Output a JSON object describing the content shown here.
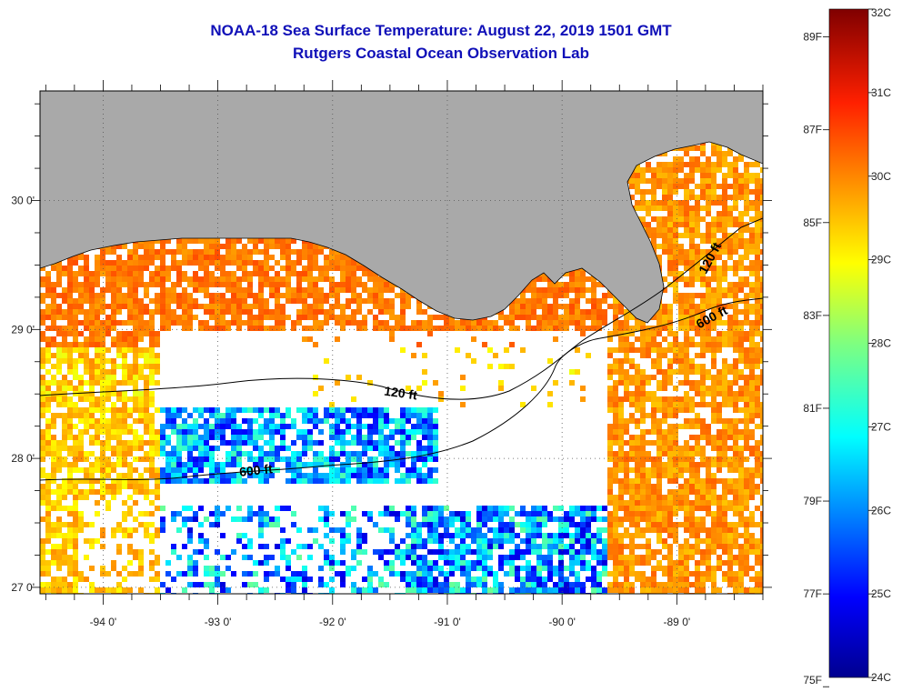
{
  "title": "NOAA-18 Sea Surface Temperature:  August 22, 2019 1501 GMT",
  "subtitle": "Rutgers Coastal Ocean Observation Lab",
  "colors": {
    "land": "#a9a9a9",
    "title": "#1010b8",
    "missing": "#ffffff"
  },
  "map": {
    "lon_range": [
      -94.55,
      -88.25
    ],
    "lat_range": [
      26.95,
      30.85
    ],
    "lon_ticks": [
      "-94 0'",
      "-93 0'",
      "-92 0'",
      "-91 0'",
      "-90 0'",
      "-89 0'"
    ],
    "lat_ticks": [
      "30 0'",
      "29 0'",
      "28 0'",
      "27 0'"
    ],
    "contours": [
      {
        "label": "120 ft"
      },
      {
        "label": "600 ft"
      },
      {
        "label": "120 ft"
      },
      {
        "label": "600 ft"
      }
    ]
  },
  "colorbar": {
    "celsius_labels": [
      "32C",
      "31C",
      "30C",
      "29C",
      "28C",
      "27C",
      "26C",
      "25C",
      "24C"
    ],
    "fahrenheit_labels": [
      "89F",
      "87F",
      "85F",
      "83F",
      "81F",
      "79F",
      "77F",
      "75F"
    ],
    "range_c": [
      24,
      32
    ],
    "colormap": "jet"
  }
}
